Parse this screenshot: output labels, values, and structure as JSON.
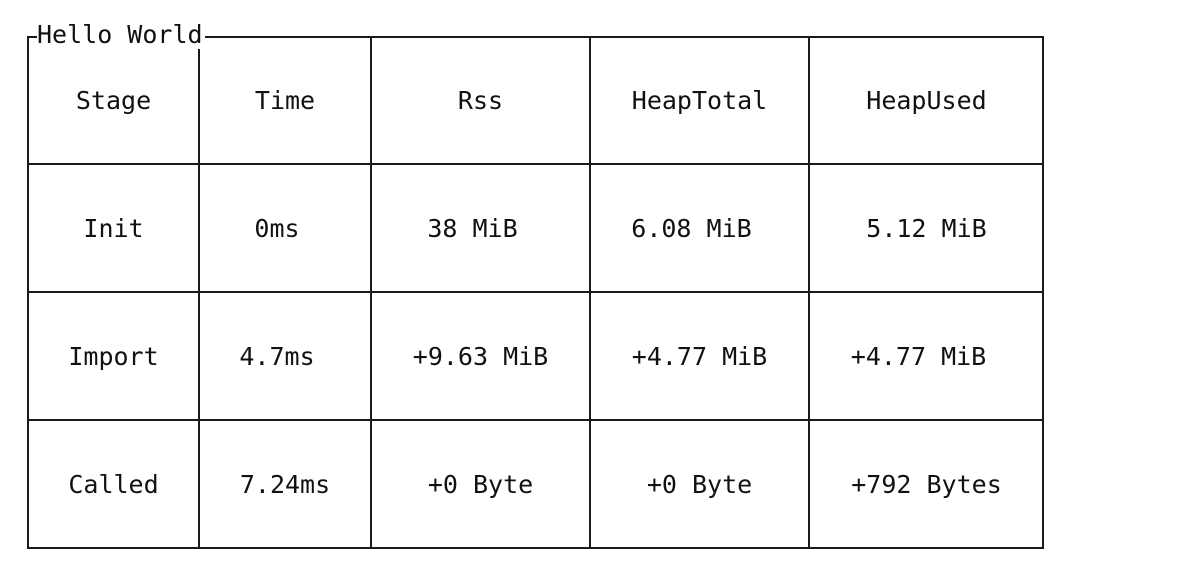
{
  "table": {
    "title": "Hello World",
    "columns": [
      "Stage",
      "Time",
      "Rss",
      "HeapTotal",
      "HeapUsed"
    ],
    "rows": [
      [
        "Init",
        "0ms",
        "38 MiB",
        "6.08 MiB",
        "5.12 MiB"
      ],
      [
        "Import",
        "4.7ms",
        "+9.63 MiB",
        "+4.77 MiB",
        "+4.77 MiB"
      ],
      [
        "Called",
        "7.24ms",
        "+0 Byte",
        "+0 Byte",
        "+792 Bytes"
      ]
    ]
  }
}
